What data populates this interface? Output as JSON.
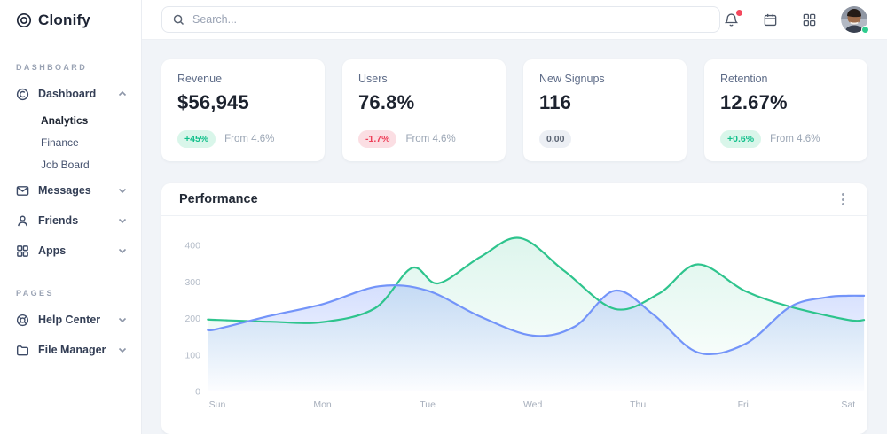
{
  "brand": {
    "name": "Clonify"
  },
  "topbar": {
    "search_placeholder": "Search...",
    "icons": [
      "bell-icon",
      "calendar-icon",
      "apps-grid-icon",
      "user-avatar"
    ],
    "notification_dot": true,
    "status_online": true
  },
  "sidebar": {
    "sections": [
      {
        "label": "DASHBOARD",
        "items": [
          {
            "label": "Dashboard",
            "icon": "dashboard-icon",
            "expanded": true,
            "children": [
              {
                "label": "Analytics",
                "active": true
              },
              {
                "label": "Finance",
                "active": false
              },
              {
                "label": "Job Board",
                "active": false
              }
            ]
          },
          {
            "label": "Messages",
            "icon": "messages-icon",
            "expanded": false
          },
          {
            "label": "Friends",
            "icon": "friends-icon",
            "expanded": false
          },
          {
            "label": "Apps",
            "icon": "apps-icon",
            "expanded": false
          }
        ]
      },
      {
        "label": "PAGES",
        "items": [
          {
            "label": "Help Center",
            "icon": "help-icon",
            "expanded": false
          },
          {
            "label": "File Manager",
            "icon": "folder-icon",
            "expanded": false
          }
        ]
      }
    ]
  },
  "stats": [
    {
      "label": "Revenue",
      "value": "$56,945",
      "badge": "+45%",
      "badge_type": "positive",
      "note": "From 4.6%"
    },
    {
      "label": "Users",
      "value": "76.8%",
      "badge": "-1.7%",
      "badge_type": "negative",
      "note": "From 4.6%"
    },
    {
      "label": "New Signups",
      "value": "116",
      "badge": "0.00",
      "badge_type": "neutral",
      "note": ""
    },
    {
      "label": "Retention",
      "value": "12.67%",
      "badge": "+0.6%",
      "badge_type": "positive",
      "note": "From 4.6%"
    }
  ],
  "performance": {
    "title": "Performance"
  },
  "colors": {
    "accent_green": "#2ec48d",
    "accent_blue": "#7394f9",
    "positive_text": "#0fbf8a",
    "negative_text": "#ee4059",
    "notification_red": "#f4485d",
    "online_green": "#2ecc8e",
    "page_background": "#f1f4f8"
  },
  "chart_data": {
    "type": "area",
    "title": "Performance",
    "x_ticks": [
      "Sun",
      "Mon",
      "Tue",
      "Wed",
      "Thu",
      "Fri",
      "Sat"
    ],
    "y_ticks": [
      0,
      100,
      200,
      300,
      400
    ],
    "ylim": [
      0,
      430
    ],
    "grid": false,
    "legend_position": "none",
    "series": [
      {
        "name": "green",
        "color": "#2ec48d",
        "fill_top": "rgba(46,196,141,0.16)",
        "fill_bottom": "rgba(46,196,141,0)",
        "x": [
          -0.09,
          0,
          0.5,
          1,
          1.5,
          1.85,
          2.1,
          2.5,
          2.88,
          3.3,
          3.78,
          4.2,
          4.57,
          5.02,
          5.45,
          6,
          6.15
        ],
        "values": [
          197,
          196,
          191,
          190,
          228,
          338,
          296,
          368,
          420,
          330,
          226,
          268,
          348,
          275,
          232,
          196,
          196
        ]
      },
      {
        "name": "blue",
        "color": "#7394f9",
        "fill_top": "rgba(115,148,249,0.30)",
        "fill_bottom": "rgba(115,148,249,0.02)",
        "x": [
          -0.09,
          0,
          0.5,
          1,
          1.54,
          2,
          2.5,
          3,
          3.4,
          3.78,
          4.15,
          4.57,
          5.02,
          5.45,
          5.8,
          6,
          6.15
        ],
        "values": [
          168,
          171,
          207,
          239,
          288,
          276,
          205,
          153,
          178,
          276,
          210,
          107,
          130,
          232,
          258,
          262,
          262
        ]
      }
    ]
  }
}
